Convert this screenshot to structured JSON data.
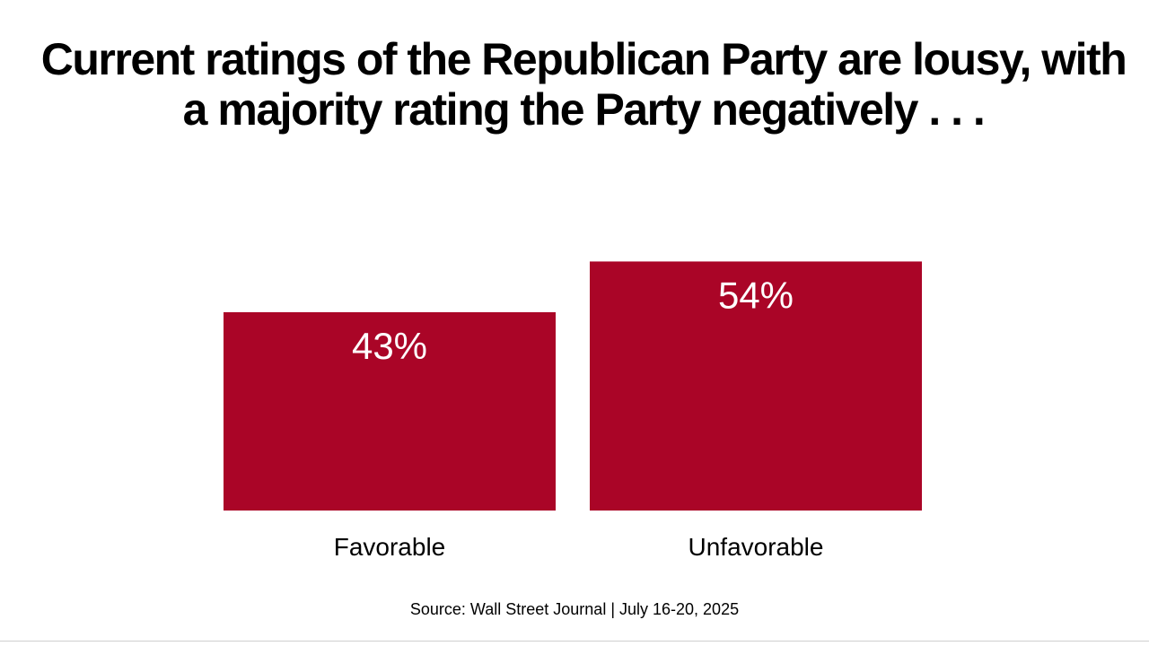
{
  "slide": {
    "title_line1": "Current ratings of the Republican Party are lousy, with",
    "title_line2": "a majority rating the Party negatively . . .",
    "source": "Source: Wall Street Journal | July 16-20, 2025"
  },
  "chart_data": {
    "type": "bar",
    "categories": [
      "Favorable",
      "Unfavorable"
    ],
    "values": [
      43,
      54
    ],
    "data_labels": [
      "43%",
      "54%"
    ],
    "ylim": [
      0,
      100
    ],
    "grid": false,
    "bar_color": "#AA0527"
  }
}
